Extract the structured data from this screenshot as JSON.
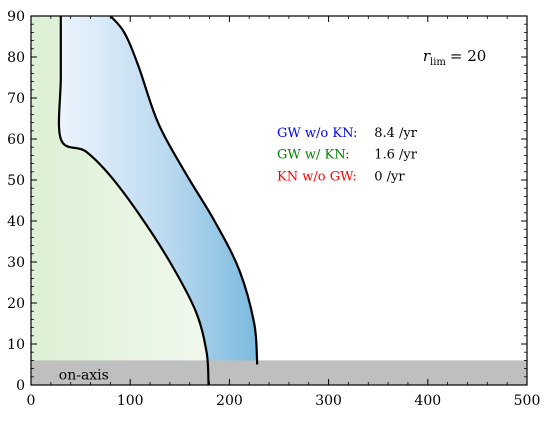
{
  "chart_data": {
    "type": "heatmap",
    "title": "",
    "xlabel": "",
    "ylabel": "",
    "xlim": [
      0,
      500
    ],
    "ylim": [
      0,
      90
    ],
    "x_ticks": [
      0,
      100,
      200,
      300,
      400,
      500
    ],
    "y_ticks": [
      0,
      10,
      20,
      30,
      40,
      50,
      60,
      70,
      80,
      90
    ],
    "x_tick_labels": [
      "0",
      "100",
      "200",
      "300",
      "400",
      "500"
    ],
    "y_tick_labels": [
      "0",
      "10",
      "20",
      "30",
      "40",
      "50",
      "60",
      "70",
      "80",
      "90"
    ],
    "grid": false,
    "r_lim": {
      "label": "r",
      "subscript": "lim",
      "relation": "= 20"
    },
    "rate_annotations": [
      {
        "label": "GW w/o KN:",
        "value": "8.4 /yr",
        "color": "#0000ff"
      },
      {
        "label": "GW w/ KN:",
        "value": "1.6 /yr",
        "color": "#008000"
      },
      {
        "label": "KN w/o GW:",
        "value": "0 /yr",
        "color": "#ff0000"
      }
    ],
    "on_axis_band": {
      "label": "on-axis",
      "y_range": [
        0,
        6
      ],
      "color": "#bfbfbf"
    },
    "contours": [
      {
        "name": "inner",
        "points": [
          [
            179,
            0
          ],
          [
            177,
            8
          ],
          [
            166,
            18
          ],
          [
            140,
            30
          ],
          [
            108,
            42
          ],
          [
            80,
            51
          ],
          [
            55,
            57
          ],
          [
            30,
            60
          ],
          [
            30,
            75
          ],
          [
            30,
            90
          ]
        ]
      },
      {
        "name": "outer",
        "points": [
          [
            228,
            5
          ],
          [
            225,
            15
          ],
          [
            210,
            28
          ],
          [
            185,
            40
          ],
          [
            155,
            52
          ],
          [
            128,
            64
          ],
          [
            108,
            78
          ],
          [
            94,
            86
          ],
          [
            80,
            90
          ]
        ]
      }
    ],
    "density_regions": [
      {
        "name": "gw-with-kn",
        "color": "#c8e6c0",
        "region": "left of inner contour, y > 6"
      },
      {
        "name": "gw-without-kn",
        "color": "#5aa9d6",
        "region": "between inner and outer contours"
      }
    ]
  }
}
